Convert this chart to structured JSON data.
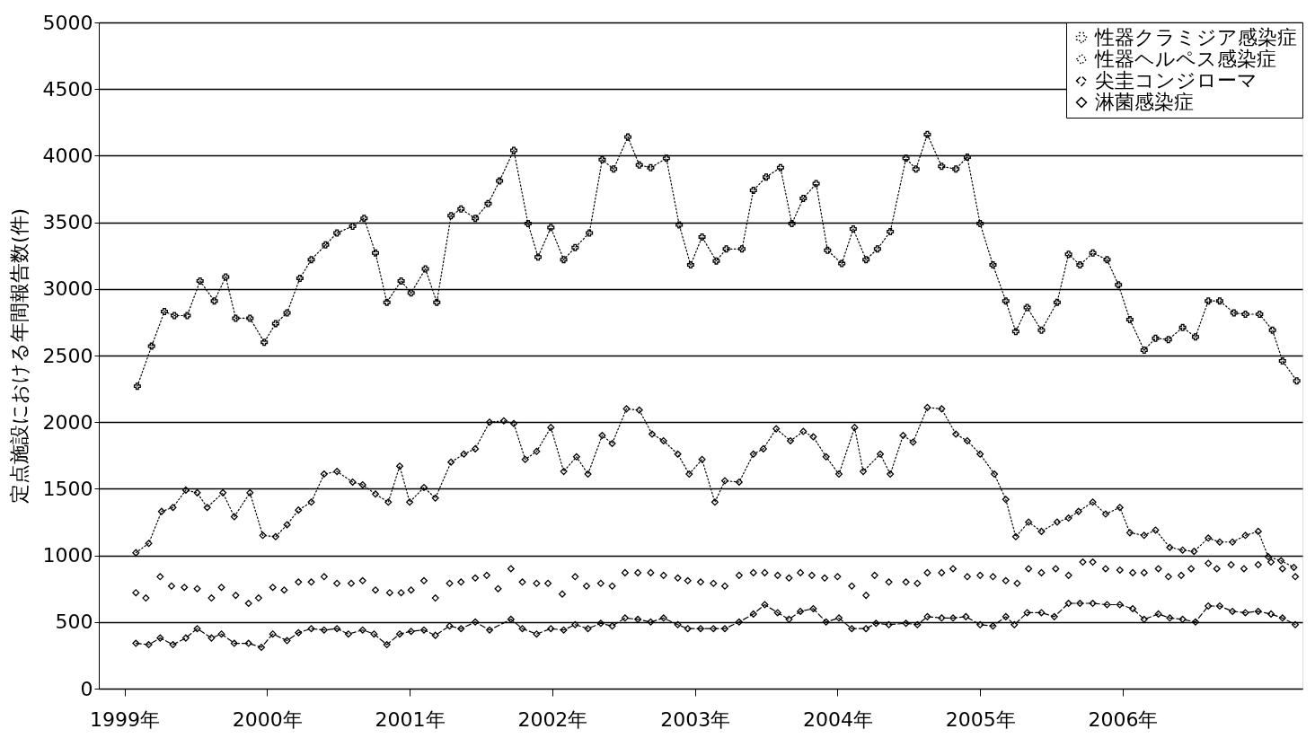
{
  "chart_data": {
    "type": "line",
    "ylabel": "定点施設における年間報告数(件)",
    "xlim": [
      1998.82,
      2007.26
    ],
    "ylim": [
      0,
      5000
    ],
    "xticks": [
      {
        "value": 1999,
        "label": "1999年"
      },
      {
        "value": 2000,
        "label": "2000年"
      },
      {
        "value": 2001,
        "label": "2001年"
      },
      {
        "value": 2002,
        "label": "2002年"
      },
      {
        "value": 2003,
        "label": "2003年"
      },
      {
        "value": 2004,
        "label": "2004年"
      },
      {
        "value": 2005,
        "label": "2005年"
      },
      {
        "value": 2006,
        "label": "2006年"
      }
    ],
    "yticks": [
      0,
      500,
      1000,
      1500,
      2000,
      2500,
      3000,
      3500,
      4000,
      4500,
      5000
    ],
    "grid": "y",
    "legend": "top right",
    "series": [
      {
        "name": "性器クラミジア感染症",
        "color": "#000000",
        "marker": "cross",
        "line_style": "dotted",
        "x": [
          1999.09,
          1999.19,
          1999.28,
          1999.35,
          1999.44,
          1999.53,
          1999.63,
          1999.71,
          1999.78,
          1999.88,
          1999.98,
          2000.06,
          2000.14,
          2000.23,
          2000.31,
          2000.41,
          2000.49,
          2000.6,
          2000.68,
          2000.76,
          2000.84,
          2000.94,
          2001.01,
          2001.11,
          2001.19,
          2001.29,
          2001.36,
          2001.46,
          2001.55,
          2001.63,
          2001.73,
          2001.83,
          2001.9,
          2001.99,
          2002.08,
          2002.16,
          2002.26,
          2002.35,
          2002.43,
          2002.53,
          2002.61,
          2002.69,
          2002.8,
          2002.89,
          2002.97,
          2003.05,
          2003.15,
          2003.22,
          2003.33,
          2003.41,
          2003.5,
          2003.6,
          2003.68,
          2003.76,
          2003.85,
          2003.93,
          2004.03,
          2004.11,
          2004.2,
          2004.28,
          2004.37,
          2004.48,
          2004.55,
          2004.63,
          2004.73,
          2004.83,
          2004.91,
          2005.0,
          2005.09,
          2005.18,
          2005.25,
          2005.33,
          2005.43,
          2005.54,
          2005.62,
          2005.7,
          2005.79,
          2005.89,
          2005.97,
          2006.05,
          2006.15,
          2006.23,
          2006.32,
          2006.42,
          2006.51,
          2006.6,
          2006.68,
          2006.78,
          2006.86,
          2006.96,
          2007.05,
          2007.12,
          2007.22
        ],
        "values": [
          2270,
          2570,
          2830,
          2800,
          2800,
          3060,
          2910,
          3090,
          2780,
          2780,
          2600,
          2740,
          2820,
          3080,
          3220,
          3330,
          3420,
          3470,
          3530,
          3270,
          2900,
          3060,
          2970,
          3150,
          2900,
          3550,
          3600,
          3530,
          3640,
          3810,
          4040,
          3490,
          3240,
          3460,
          3220,
          3310,
          3420,
          3970,
          3900,
          4140,
          3930,
          3910,
          3980,
          3480,
          3180,
          3390,
          3210,
          3300,
          3300,
          3740,
          3840,
          3910,
          3490,
          3680,
          3790,
          3290,
          3190,
          3450,
          3220,
          3300,
          3430,
          3980,
          3900,
          4160,
          3920,
          3900,
          3990,
          3490,
          3180,
          2910,
          2680,
          2860,
          2690,
          2900,
          3260,
          3180,
          3270,
          3220,
          3030,
          2770,
          2540,
          2630,
          2620,
          2710,
          2640,
          2910,
          2910,
          2820,
          2810,
          2810,
          2690,
          2460,
          2310
        ]
      },
      {
        "name": "性器ヘルペス感染症",
        "color": "#000000",
        "marker": "diamond",
        "line_style": "dotted",
        "x": [
          1999.08,
          1999.17,
          1999.26,
          1999.34,
          1999.43,
          1999.51,
          1999.58,
          1999.69,
          1999.77,
          1999.88,
          1999.97,
          2000.06,
          2000.14,
          2000.22,
          2000.31,
          2000.4,
          2000.49,
          2000.6,
          2000.67,
          2000.76,
          2000.85,
          2000.93,
          2001.0,
          2001.1,
          2001.18,
          2001.29,
          2001.38,
          2001.46,
          2001.56,
          2001.66,
          2001.73,
          2001.81,
          2001.89,
          2001.99,
          2002.08,
          2002.17,
          2002.25,
          2002.35,
          2002.42,
          2002.52,
          2002.61,
          2002.7,
          2002.78,
          2002.88,
          2002.96,
          2003.05,
          2003.14,
          2003.21,
          2003.31,
          2003.41,
          2003.48,
          2003.57,
          2003.67,
          2003.76,
          2003.83,
          2003.92,
          2004.01,
          2004.12,
          2004.18,
          2004.3,
          2004.37,
          2004.46,
          2004.53,
          2004.63,
          2004.73,
          2004.83,
          2004.91,
          2005.0,
          2005.1,
          2005.18,
          2005.25,
          2005.34,
          2005.43,
          2005.54,
          2005.62,
          2005.69,
          2005.79,
          2005.88,
          2005.98,
          2006.05,
          2006.15,
          2006.23,
          2006.33,
          2006.42,
          2006.5,
          2006.6,
          2006.68,
          2006.77,
          2006.86,
          2006.95,
          2007.02,
          2007.11,
          2007.2
        ],
        "values": [
          1020,
          1090,
          1330,
          1360,
          1490,
          1470,
          1360,
          1470,
          1290,
          1470,
          1150,
          1140,
          1230,
          1340,
          1400,
          1610,
          1630,
          1550,
          1530,
          1460,
          1400,
          1670,
          1400,
          1510,
          1430,
          1700,
          1760,
          1800,
          2000,
          2010,
          1990,
          1720,
          1780,
          1960,
          1630,
          1740,
          1610,
          1900,
          1840,
          2100,
          2090,
          1910,
          1860,
          1760,
          1610,
          1720,
          1400,
          1560,
          1550,
          1760,
          1800,
          1950,
          1860,
          1930,
          1890,
          1740,
          1610,
          1960,
          1630,
          1760,
          1610,
          1900,
          1850,
          2110,
          2100,
          1910,
          1860,
          1760,
          1610,
          1420,
          1140,
          1250,
          1180,
          1250,
          1280,
          1330,
          1400,
          1310,
          1360,
          1170,
          1150,
          1190,
          1060,
          1040,
          1030,
          1130,
          1100,
          1100,
          1150,
          1180,
          990,
          960,
          910
        ]
      },
      {
        "name": "尖圭コンジローマ",
        "color": "#000000",
        "marker": "diamond",
        "line_style": "dashed",
        "x": [
          1999.08,
          1999.17,
          1999.25,
          1999.34,
          1999.43,
          1999.51,
          1999.61,
          1999.68,
          1999.77,
          1999.87,
          1999.96,
          2000.04,
          2000.14,
          2000.22,
          2000.31,
          2000.4,
          2000.49,
          2000.57,
          2000.67,
          2000.75,
          2000.84,
          2000.93,
          2001.01,
          2001.1,
          2001.18,
          2001.28,
          2001.36,
          2001.46,
          2001.56,
          2001.71,
          2001.79,
          2001.89,
          2001.99,
          2002.08,
          2002.16,
          2002.25,
          2002.34,
          2002.42,
          2002.51,
          2002.6,
          2002.69,
          2002.78,
          2002.88,
          2002.95,
          2003.04,
          2003.13,
          2003.21,
          2003.31,
          2003.41,
          2003.49,
          2003.58,
          2003.66,
          2003.74,
          2003.83,
          2003.92,
          2004.01,
          2004.1,
          2004.2,
          2004.27,
          2004.36,
          2004.48,
          2004.56,
          2004.63,
          2004.73,
          2004.81,
          2004.9,
          2005.0,
          2005.09,
          2005.18,
          2005.24,
          2005.33,
          2005.43,
          2005.52,
          2005.62,
          2005.7,
          2005.79,
          2005.89,
          2005.98,
          2006.07,
          2006.15,
          2006.25,
          2006.33,
          2006.42,
          2006.51,
          2006.6,
          2006.68,
          2006.77,
          2006.86,
          2006.95,
          2007.04,
          2007.12,
          2007.21
        ],
        "values": [
          340,
          330,
          380,
          330,
          380,
          450,
          380,
          410,
          340,
          340,
          310,
          410,
          360,
          420,
          450,
          440,
          450,
          410,
          440,
          410,
          330,
          410,
          430,
          440,
          400,
          470,
          450,
          500,
          440,
          520,
          450,
          410,
          450,
          440,
          480,
          450,
          490,
          470,
          530,
          520,
          500,
          530,
          480,
          450,
          450,
          450,
          450,
          500,
          560,
          630,
          570,
          520,
          580,
          600,
          500,
          530,
          450,
          450,
          490,
          480,
          490,
          480,
          540,
          530,
          530,
          540,
          480,
          470,
          540,
          480,
          570,
          570,
          540,
          640,
          640,
          640,
          630,
          630,
          600,
          520,
          560,
          530,
          520,
          500,
          620,
          620,
          580,
          570,
          580,
          560,
          530,
          480
        ]
      },
      {
        "name": "淋菌感染症",
        "type": "scatter",
        "color": "#000000",
        "marker": "diamond",
        "x": [
          1999.08,
          1999.15,
          1999.25,
          1999.33,
          1999.42,
          1999.51,
          1999.61,
          1999.68,
          1999.78,
          1999.87,
          1999.94,
          2000.04,
          2000.12,
          2000.22,
          2000.31,
          2000.4,
          2000.49,
          2000.59,
          2000.67,
          2000.76,
          2000.86,
          2000.94,
          2001.01,
          2001.1,
          2001.18,
          2001.28,
          2001.36,
          2001.46,
          2001.54,
          2001.62,
          2001.71,
          2001.79,
          2001.89,
          2001.97,
          2002.07,
          2002.16,
          2002.24,
          2002.34,
          2002.42,
          2002.51,
          2002.6,
          2002.69,
          2002.78,
          2002.88,
          2002.95,
          2003.04,
          2003.13,
          2003.21,
          2003.31,
          2003.41,
          2003.49,
          2003.58,
          2003.66,
          2003.74,
          2003.82,
          2003.91,
          2004.0,
          2004.1,
          2004.2,
          2004.26,
          2004.36,
          2004.48,
          2004.56,
          2004.63,
          2004.73,
          2004.81,
          2004.91,
          2005.0,
          2005.09,
          2005.18,
          2005.26,
          2005.34,
          2005.43,
          2005.53,
          2005.62,
          2005.72,
          2005.79,
          2005.88,
          2005.98,
          2006.07,
          2006.15,
          2006.25,
          2006.32,
          2006.41,
          2006.48,
          2006.6,
          2006.66,
          2006.76,
          2006.85,
          2006.95,
          2007.04,
          2007.12,
          2007.21
        ],
        "values": [
          720,
          680,
          840,
          770,
          760,
          750,
          680,
          760,
          700,
          640,
          680,
          760,
          740,
          800,
          800,
          840,
          790,
          790,
          810,
          740,
          720,
          720,
          740,
          810,
          680,
          790,
          800,
          830,
          850,
          750,
          900,
          800,
          790,
          790,
          710,
          840,
          770,
          790,
          770,
          870,
          870,
          870,
          850,
          830,
          810,
          800,
          790,
          770,
          850,
          870,
          870,
          850,
          830,
          870,
          850,
          830,
          840,
          770,
          700,
          850,
          800,
          800,
          790,
          870,
          870,
          900,
          840,
          850,
          840,
          810,
          790,
          900,
          870,
          900,
          850,
          950,
          950,
          900,
          890,
          870,
          870,
          900,
          840,
          850,
          900,
          940,
          900,
          930,
          900,
          930,
          950,
          900,
          840
        ]
      }
    ]
  }
}
